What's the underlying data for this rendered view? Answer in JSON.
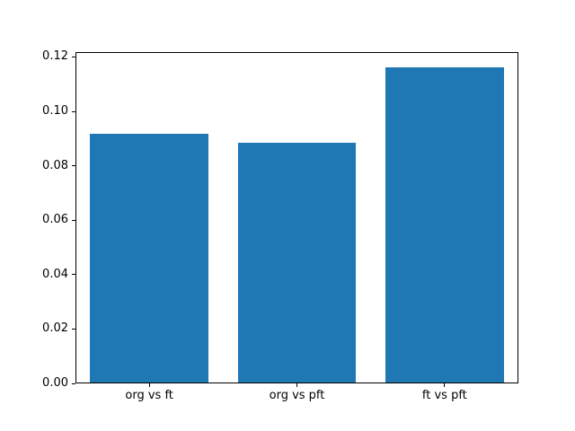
{
  "chart_data": {
    "type": "bar",
    "title": "",
    "xlabel": "",
    "ylabel": "",
    "categories": [
      "org vs ft",
      "org vs pft",
      "ft vs pft"
    ],
    "values": [
      0.0915,
      0.088,
      0.116
    ],
    "ylim": [
      0,
      0.1218
    ],
    "yticks": [
      "0.00",
      "0.02",
      "0.04",
      "0.06",
      "0.08",
      "0.10",
      "0.12"
    ],
    "ytick_values": [
      0.0,
      0.02,
      0.04,
      0.06,
      0.08,
      0.1,
      0.12
    ],
    "bar_color": "#1f77b4",
    "bar_width_fraction": 0.8,
    "grid": false,
    "legend": null,
    "background_color": "#ffffff",
    "spine_color": "#000000"
  }
}
